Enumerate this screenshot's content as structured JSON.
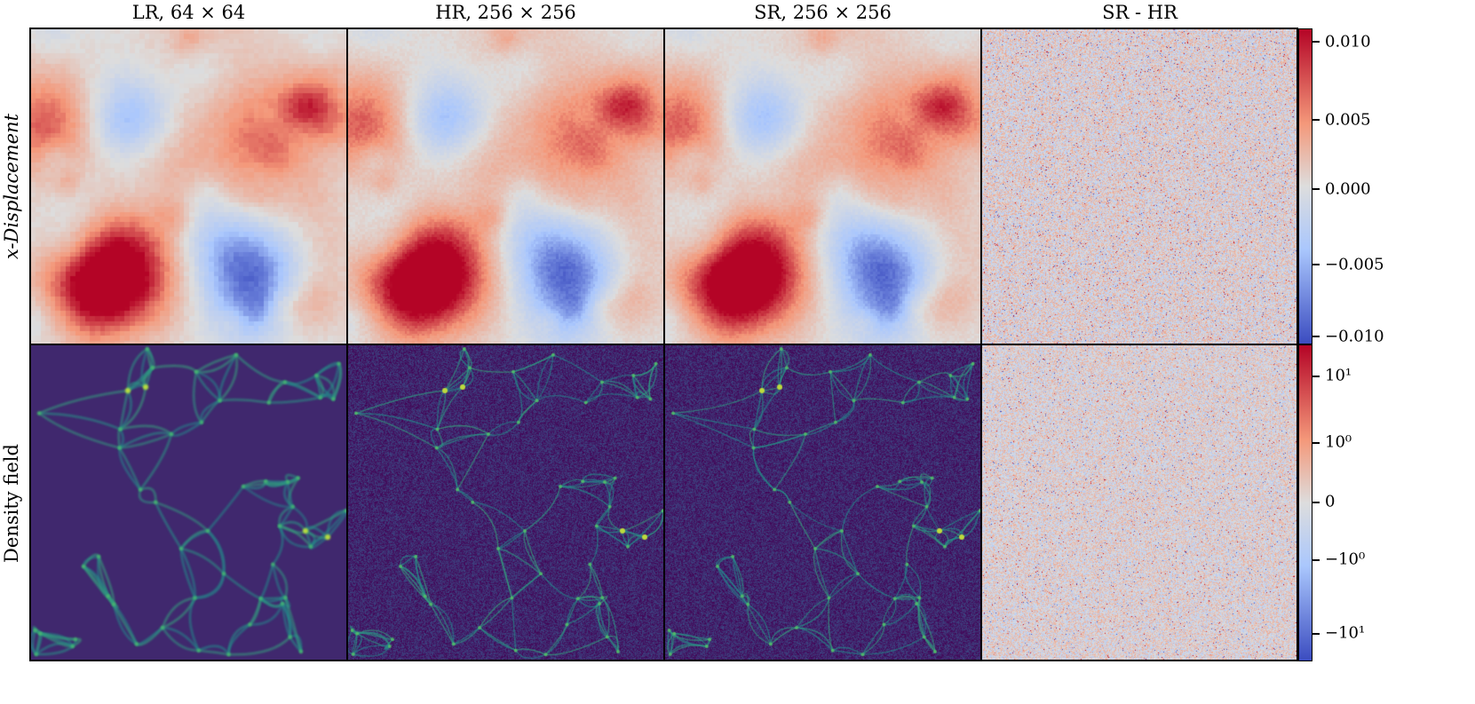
{
  "chart_data": {
    "type": "heatmap",
    "columns": [
      "LR, 64 × 64",
      "HR, 256 × 256",
      "SR, 256 × 256",
      "SR - HR"
    ],
    "rows": [
      "x-Displacement",
      "Density field"
    ],
    "colorbars": [
      {
        "row": "x-Displacement",
        "colormap": "coolwarm",
        "range": [
          -0.0105,
          0.0105
        ],
        "ticks": [
          "0.010",
          "0.005",
          "0.000",
          "−0.005",
          "−0.010"
        ]
      },
      {
        "row": "Density field",
        "colormap": "coolwarm",
        "scale": "symlog",
        "range": [
          -20,
          20
        ],
        "ticks": [
          "10¹",
          "10⁰",
          "0",
          "−10⁰",
          "−10¹"
        ]
      }
    ],
    "panel_colormaps": {
      "x-Displacement": "coolwarm",
      "Density field": "viridis"
    }
  },
  "colors": {
    "cool": "#3b4cc0",
    "mid": "#dddddd",
    "warm": "#b40426"
  }
}
